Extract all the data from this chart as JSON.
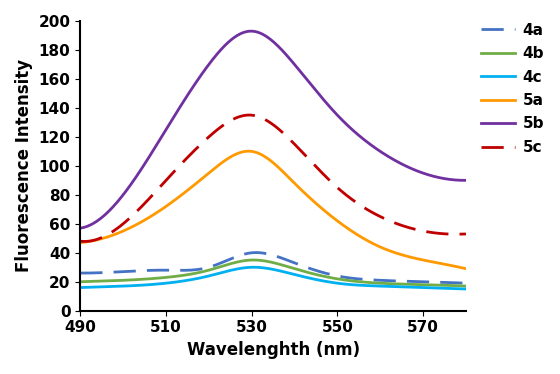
{
  "xlabel": "Wavelenghth (nm)",
  "ylabel": "Fluorescence Intensity",
  "xlim": [
    490,
    580
  ],
  "ylim": [
    0,
    200
  ],
  "yticks": [
    0,
    20,
    40,
    60,
    80,
    100,
    120,
    140,
    160,
    180,
    200
  ],
  "xticks": [
    490,
    510,
    530,
    550,
    570
  ],
  "series": {
    "4a": {
      "color": "#4472C4",
      "linestyle": "dashed",
      "linewidth": 2.0,
      "points_x": [
        490,
        500,
        510,
        520,
        530,
        540,
        550,
        560,
        570,
        580
      ],
      "points_y": [
        26,
        27,
        28,
        30,
        40,
        33,
        24,
        21,
        20,
        19
      ]
    },
    "4b": {
      "color": "#70AD47",
      "linestyle": "solid",
      "linewidth": 2.0,
      "points_x": [
        490,
        500,
        510,
        520,
        530,
        540,
        550,
        560,
        570,
        580
      ],
      "points_y": [
        20,
        21,
        23,
        28,
        35,
        29,
        22,
        19,
        18,
        17
      ]
    },
    "4c": {
      "color": "#00B0F0",
      "linestyle": "solid",
      "linewidth": 2.0,
      "points_x": [
        490,
        500,
        510,
        520,
        530,
        540,
        550,
        560,
        570,
        580
      ],
      "points_y": [
        16,
        17,
        19,
        24,
        30,
        25,
        19,
        17,
        16,
        15
      ]
    },
    "5a": {
      "color": "#FF9900",
      "linestyle": "solid",
      "linewidth": 2.0,
      "points_x": [
        490,
        500,
        510,
        520,
        530,
        540,
        550,
        560,
        570,
        580
      ],
      "points_y": [
        47,
        55,
        72,
        95,
        110,
        88,
        62,
        44,
        35,
        29
      ]
    },
    "5b": {
      "color": "#7030A0",
      "linestyle": "solid",
      "linewidth": 2.0,
      "points_x": [
        490,
        500,
        510,
        520,
        530,
        540,
        550,
        560,
        570,
        580
      ],
      "points_y": [
        57,
        80,
        125,
        170,
        193,
        170,
        135,
        110,
        95,
        90
      ]
    },
    "5c": {
      "color": "#C00000",
      "linestyle": "dashed",
      "linewidth": 2.0,
      "points_x": [
        490,
        500,
        510,
        520,
        530,
        540,
        550,
        560,
        570,
        580
      ],
      "points_y": [
        48,
        60,
        90,
        120,
        135,
        115,
        85,
        65,
        55,
        53
      ]
    }
  },
  "legend_labels": [
    "4a",
    "4b",
    "4c",
    "5a",
    "5b",
    "5c"
  ],
  "legend_fontsize": 11,
  "axis_label_fontsize": 12,
  "tick_fontsize": 11
}
